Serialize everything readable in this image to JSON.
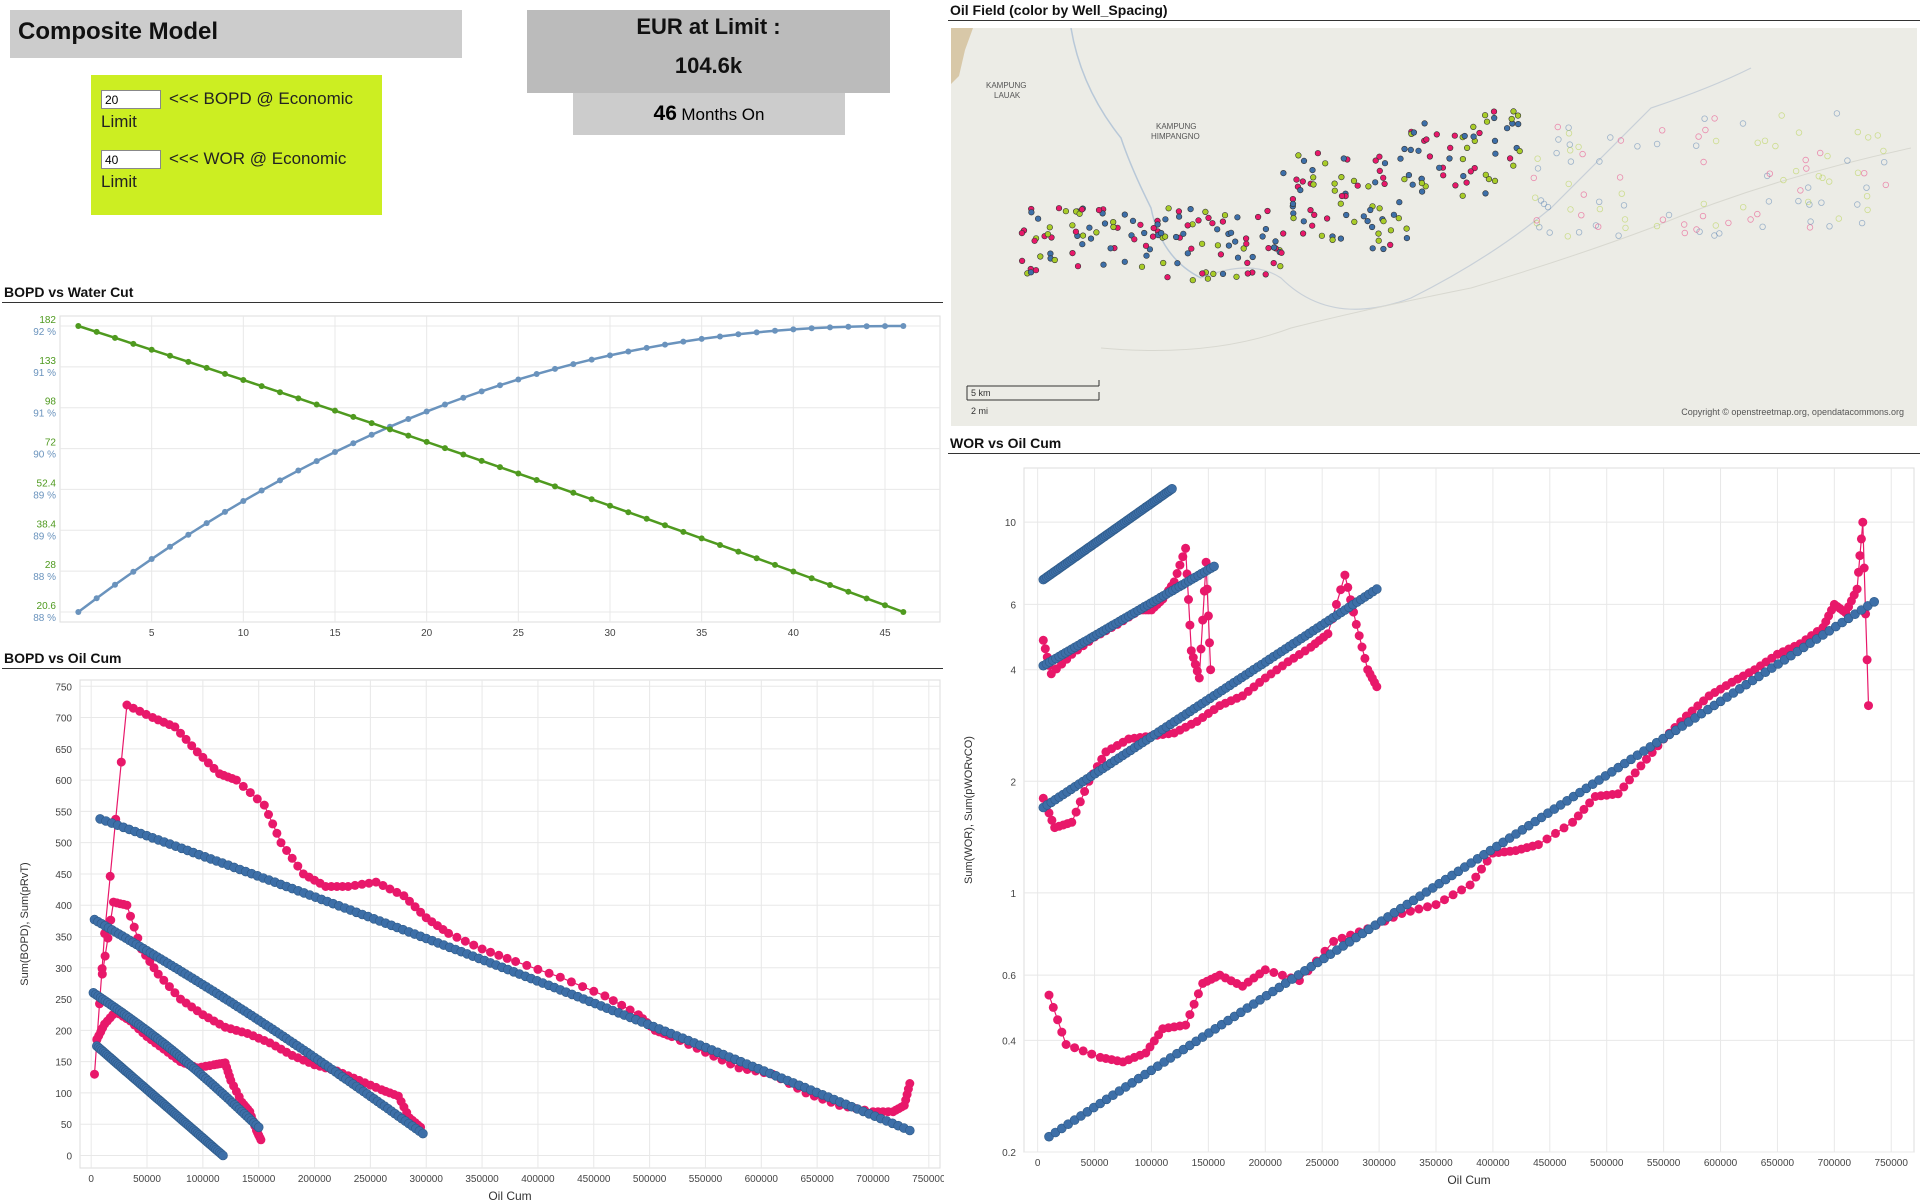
{
  "header": {
    "title": "Composite Model",
    "bopd_input": "20",
    "bopd_label": "<<< BOPD @ Economic Limit",
    "wor_input": "40",
    "wor_label": "<<< WOR @ Economic Limit",
    "eur_label": "EUR at Limit :",
    "eur_value": "104.6k",
    "months_value": "46",
    "months_unit": "Months On"
  },
  "map": {
    "title": "Oil Field (color by Well_Spacing)",
    "place1": "KAMPUNG\nLAUAK",
    "place2": "KAMPUNG\nHIMPANGNO",
    "scale_km": "5 km",
    "scale_mi": "2 mi",
    "copyright": "Copyright © openstreetmap.org, opendatacommons.org",
    "colors": [
      "#3d6fa8",
      "#e8186a",
      "#a8cc28"
    ]
  },
  "chart_data": [
    {
      "id": "wc",
      "type": "line",
      "title": "BOPD vs Water Cut",
      "x_range": [
        1,
        46
      ],
      "xlim": [
        0,
        48
      ],
      "xticks": [
        5,
        10,
        15,
        20,
        25,
        30,
        35,
        40,
        45
      ],
      "left_labels": [
        {
          "bopd": "182",
          "wc": "92 %"
        },
        {
          "bopd": "133",
          "wc": "91 %"
        },
        {
          "bopd": "98",
          "wc": "91 %"
        },
        {
          "bopd": "72",
          "wc": "90 %"
        },
        {
          "bopd": "52.4",
          "wc": "89 %"
        },
        {
          "bopd": "38.4",
          "wc": "89 %"
        },
        {
          "bopd": "28",
          "wc": "88 %"
        },
        {
          "bopd": "20.6",
          "wc": "88 %"
        }
      ],
      "bopd_range": [
        182,
        20.6
      ],
      "wc_range": [
        87.8,
        92.2
      ],
      "colors": {
        "bopd": "#4f9a1f",
        "wc": "#6a93bd"
      }
    },
    {
      "id": "bopd",
      "type": "line",
      "title": "BOPD vs Oil Cum",
      "xlabel": "Oil Cum",
      "ylabel": "Sum(BOPD), Sum(pRvT)",
      "xlim": [
        -10000,
        760000
      ],
      "ylim": [
        -20,
        760
      ],
      "xticks": [
        0,
        50000,
        100000,
        150000,
        200000,
        250000,
        300000,
        350000,
        400000,
        450000,
        500000,
        550000,
        600000,
        650000,
        700000,
        750000
      ],
      "yticks": [
        0,
        50,
        100,
        150,
        200,
        250,
        300,
        350,
        400,
        450,
        500,
        550,
        600,
        650,
        700,
        750
      ],
      "series": [
        {
          "name": "model-1",
          "color": "#3d6fa8",
          "kind": "fit",
          "x_start": 5000,
          "x_end": 118000,
          "y_start": 175,
          "y_end": 0,
          "n": 75,
          "curve": 0
        },
        {
          "name": "model-2",
          "color": "#3d6fa8",
          "kind": "fit",
          "x_start": 2000,
          "x_end": 150000,
          "y_start": 260,
          "y_end": 45,
          "n": 70,
          "curve": 0.05
        },
        {
          "name": "model-3",
          "color": "#3d6fa8",
          "kind": "fit",
          "x_start": 3000,
          "x_end": 297000,
          "y_start": 377,
          "y_end": 35,
          "n": 95,
          "curve": 0.03
        },
        {
          "name": "model-4",
          "color": "#3d6fa8",
          "kind": "fit",
          "x_start": 8000,
          "x_end": 733000,
          "y_start": 538,
          "y_end": 40,
          "n": 140,
          "curve": 0.02
        },
        {
          "name": "actual-2",
          "color": "#e8186a",
          "kind": "pts",
          "points": [
            [
              5000,
              185
            ],
            [
              12000,
              210
            ],
            [
              22000,
              230
            ],
            [
              35000,
              215
            ],
            [
              50000,
              190
            ],
            [
              65000,
              170
            ],
            [
              80000,
              150
            ],
            [
              95000,
              140
            ],
            [
              110000,
              145
            ],
            [
              120000,
              148
            ],
            [
              125000,
              120
            ],
            [
              135000,
              85
            ],
            [
              142000,
              70
            ],
            [
              148000,
              40
            ],
            [
              152000,
              25
            ]
          ]
        },
        {
          "name": "actual-3",
          "color": "#e8186a",
          "kind": "pts",
          "points": [
            [
              10000,
              290
            ],
            [
              20000,
              405
            ],
            [
              32000,
              400
            ],
            [
              45000,
              330
            ],
            [
              60000,
              290
            ],
            [
              80000,
              250
            ],
            [
              100000,
              225
            ],
            [
              120000,
              205
            ],
            [
              140000,
              195
            ],
            [
              160000,
              180
            ],
            [
              180000,
              160
            ],
            [
              200000,
              145
            ],
            [
              220000,
              135
            ],
            [
              240000,
              120
            ],
            [
              260000,
              105
            ],
            [
              275000,
              95
            ],
            [
              285000,
              60
            ],
            [
              295000,
              45
            ]
          ]
        },
        {
          "name": "actual-4",
          "color": "#e8186a",
          "kind": "pts",
          "points": [
            [
              3000,
              130
            ],
            [
              12000,
              355
            ],
            [
              32000,
              720
            ],
            [
              55000,
              700
            ],
            [
              75000,
              685
            ],
            [
              95000,
              645
            ],
            [
              115000,
              610
            ],
            [
              130000,
              600
            ],
            [
              155000,
              560
            ],
            [
              170000,
              500
            ],
            [
              190000,
              450
            ],
            [
              210000,
              430
            ],
            [
              230000,
              430
            ],
            [
              255000,
              437
            ],
            [
              280000,
              415
            ],
            [
              300000,
              380
            ],
            [
              320000,
              355
            ],
            [
              350000,
              330
            ],
            [
              380000,
              310
            ],
            [
              420000,
              285
            ],
            [
              460000,
              255
            ],
            [
              490000,
              225
            ],
            [
              505000,
              200
            ],
            [
              520000,
              190
            ],
            [
              550000,
              165
            ],
            [
              580000,
              140
            ],
            [
              610000,
              130
            ],
            [
              640000,
              100
            ],
            [
              670000,
              80
            ],
            [
              700000,
              70
            ],
            [
              718000,
              70
            ],
            [
              728000,
              80
            ],
            [
              733000,
              115
            ]
          ]
        }
      ]
    },
    {
      "id": "wor",
      "type": "line",
      "title": "WOR vs Oil Cum",
      "xlabel": "Oil Cum",
      "ylabel": "Sum(WOR), Sum(pWORvCO)",
      "scale": "log",
      "xlim": [
        -12000,
        770000
      ],
      "ylim": [
        0.2,
        14
      ],
      "xticks": [
        0,
        50000,
        100000,
        150000,
        200000,
        250000,
        300000,
        350000,
        400000,
        450000,
        500000,
        550000,
        600000,
        650000,
        700000,
        750000
      ],
      "yticks": [
        0.2,
        0.4,
        0.6,
        1,
        2,
        4,
        6,
        10
      ],
      "series": [
        {
          "name": "model-1",
          "color": "#3d6fa8",
          "kind": "fit",
          "x_start": 5000,
          "x_end": 118000,
          "y_start": 7.0,
          "y_end": 12.3,
          "n": 75
        },
        {
          "name": "model-2",
          "color": "#3d6fa8",
          "kind": "fit",
          "x_start": 5000,
          "x_end": 155000,
          "y_start": 4.1,
          "y_end": 7.6,
          "n": 55
        },
        {
          "name": "model-3",
          "color": "#3d6fa8",
          "kind": "fit",
          "x_start": 5000,
          "x_end": 298000,
          "y_start": 1.7,
          "y_end": 6.6,
          "n": 85
        },
        {
          "name": "model-4",
          "color": "#3d6fa8",
          "kind": "fit",
          "x_start": 10000,
          "x_end": 735000,
          "y_start": 0.22,
          "y_end": 6.1,
          "n": 130
        },
        {
          "name": "actual-2",
          "color": "#e8186a",
          "kind": "pts",
          "points": [
            [
              5000,
              4.8
            ],
            [
              12000,
              3.9
            ],
            [
              30000,
              4.4
            ],
            [
              50000,
              4.9
            ],
            [
              70000,
              5.3
            ],
            [
              90000,
              5.8
            ],
            [
              100000,
              5.8
            ],
            [
              110000,
              6.2
            ],
            [
              120000,
              6.9
            ],
            [
              130000,
              8.5
            ],
            [
              135000,
              4.5
            ],
            [
              142000,
              3.8
            ],
            [
              148000,
              7.8
            ],
            [
              152000,
              4.0
            ]
          ]
        },
        {
          "name": "actual-3",
          "color": "#e8186a",
          "kind": "pts",
          "points": [
            [
              5000,
              1.8
            ],
            [
              15000,
              1.5
            ],
            [
              30000,
              1.55
            ],
            [
              45000,
              2.0
            ],
            [
              60000,
              2.4
            ],
            [
              80000,
              2.6
            ],
            [
              100000,
              2.65
            ],
            [
              120000,
              2.7
            ],
            [
              140000,
              2.9
            ],
            [
              160000,
              3.2
            ],
            [
              180000,
              3.4
            ],
            [
              200000,
              3.8
            ],
            [
              220000,
              4.2
            ],
            [
              240000,
              4.6
            ],
            [
              255000,
              5.0
            ],
            [
              270000,
              7.2
            ],
            [
              280000,
              5.3
            ],
            [
              290000,
              4.0
            ],
            [
              298000,
              3.6
            ]
          ]
        },
        {
          "name": "actual-4",
          "color": "#e8186a",
          "kind": "pts",
          "points": [
            [
              10000,
              0.53
            ],
            [
              25000,
              0.39
            ],
            [
              55000,
              0.36
            ],
            [
              75000,
              0.35
            ],
            [
              95000,
              0.37
            ],
            [
              110000,
              0.43
            ],
            [
              130000,
              0.44
            ],
            [
              145000,
              0.57
            ],
            [
              160000,
              0.6
            ],
            [
              180000,
              0.56
            ],
            [
              200000,
              0.62
            ],
            [
              230000,
              0.58
            ],
            [
              260000,
              0.74
            ],
            [
              290000,
              0.8
            ],
            [
              320000,
              0.88
            ],
            [
              350000,
              0.93
            ],
            [
              380000,
              1.05
            ],
            [
              400000,
              1.28
            ],
            [
              420000,
              1.3
            ],
            [
              440000,
              1.35
            ],
            [
              470000,
              1.55
            ],
            [
              490000,
              1.82
            ],
            [
              510000,
              1.85
            ],
            [
              530000,
              2.2
            ],
            [
              550000,
              2.6
            ],
            [
              570000,
              3.0
            ],
            [
              590000,
              3.4
            ],
            [
              610000,
              3.7
            ],
            [
              630000,
              4.0
            ],
            [
              650000,
              4.4
            ],
            [
              670000,
              4.7
            ],
            [
              690000,
              5.2
            ],
            [
              700000,
              6.0
            ],
            [
              710000,
              5.7
            ],
            [
              720000,
              6.6
            ],
            [
              725000,
              10.0
            ],
            [
              730000,
              3.2
            ]
          ]
        }
      ]
    }
  ]
}
